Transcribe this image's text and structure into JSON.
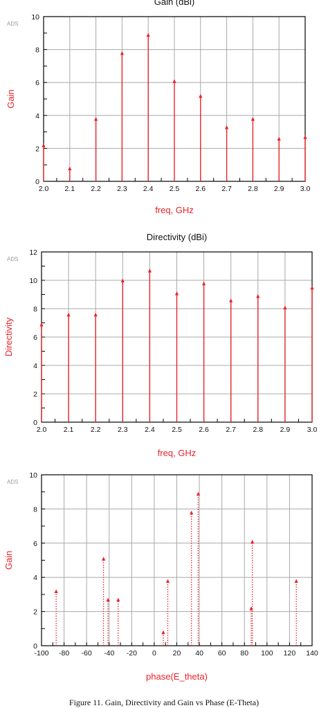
{
  "caption": "Figure 11. Gain, Directivity and Gain vs Phase (E-Theta)",
  "colors": {
    "stem": "#e8232a",
    "grid": "#a8a8a8",
    "axis_label": "#e8232a",
    "ads": "#9a9a9a"
  },
  "chart_data": [
    {
      "type": "bar",
      "style": "stem",
      "title": "Gain (dBi)",
      "watermark": "ADS",
      "xlabel": "freq, GHz",
      "ylabel": "Gain",
      "xlim": [
        2.0,
        3.0
      ],
      "ylim": [
        0,
        10
      ],
      "x_ticks": [
        "2.0",
        "2.1",
        "2.2",
        "2.3",
        "2.4",
        "2.5",
        "2.6",
        "2.7",
        "2.8",
        "2.9",
        "3.0"
      ],
      "y_ticks": [
        "0",
        "2",
        "4",
        "6",
        "8",
        "10"
      ],
      "grid": true,
      "x": [
        2.0,
        2.1,
        2.2,
        2.3,
        2.4,
        2.5,
        2.6,
        2.7,
        2.8,
        2.9,
        3.0
      ],
      "values": [
        2.2,
        0.8,
        3.8,
        7.8,
        8.9,
        6.1,
        5.2,
        3.3,
        3.8,
        2.6,
        2.7
      ]
    },
    {
      "type": "bar",
      "style": "stem",
      "title": "Directivity (dBi)",
      "watermark": "ADS",
      "xlabel": "freq, GHz",
      "ylabel": "Directivity",
      "xlim": [
        2.0,
        3.0
      ],
      "ylim": [
        0,
        12
      ],
      "x_ticks": [
        "2.0",
        "2.1",
        "2.2",
        "2.3",
        "2.4",
        "2.5",
        "2.6",
        "2.7",
        "2.8",
        "2.9",
        "3.0"
      ],
      "y_ticks": [
        "0",
        "2",
        "4",
        "6",
        "8",
        "10",
        "12"
      ],
      "grid": true,
      "x": [
        2.0,
        2.1,
        2.2,
        2.3,
        2.4,
        2.5,
        2.6,
        2.7,
        2.8,
        2.9,
        3.0
      ],
      "values": [
        6.9,
        7.6,
        7.6,
        10.0,
        10.7,
        9.1,
        9.8,
        8.6,
        8.9,
        8.1,
        9.5
      ]
    },
    {
      "type": "scatter",
      "style": "dotted-stem",
      "title": "",
      "watermark": "ADS",
      "xlabel": "phase(E_theta)",
      "ylabel": "Gain",
      "xlim": [
        -100,
        140
      ],
      "ylim": [
        0,
        10
      ],
      "x_ticks": [
        "-100",
        "-80",
        "-60",
        "-40",
        "-20",
        "0",
        "20",
        "40",
        "60",
        "80",
        "100",
        "120",
        "140"
      ],
      "y_ticks": [
        "0",
        "2",
        "4",
        "6",
        "8",
        "10"
      ],
      "grid": true,
      "x": [
        -87,
        -45,
        -41,
        -32,
        8,
        12,
        33,
        39,
        86,
        87,
        126
      ],
      "values": [
        3.2,
        5.1,
        2.7,
        2.7,
        0.8,
        3.8,
        7.8,
        8.9,
        2.2,
        6.1,
        3.8
      ]
    }
  ]
}
